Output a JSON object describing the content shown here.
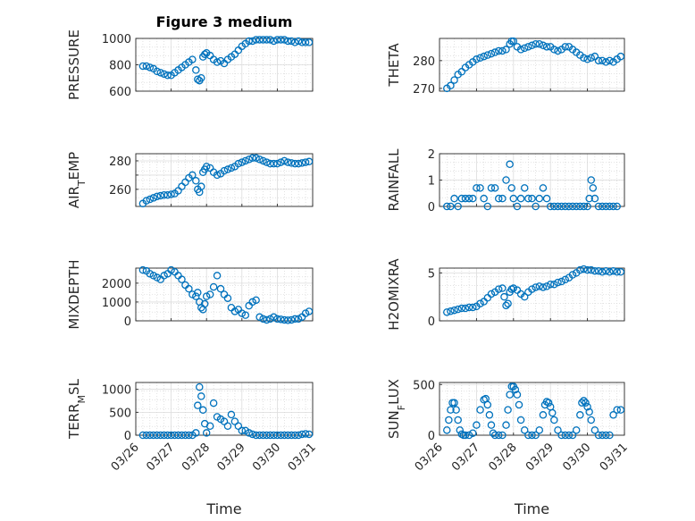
{
  "figure": {
    "title": "Figure 3 medium",
    "marker_color": "#0072BD",
    "x_ticks": [
      "03/26",
      "03/27",
      "03/28",
      "03/29",
      "03/30",
      "03/31"
    ],
    "x_label": "Time"
  },
  "chart_data": [
    {
      "type": "scatter",
      "ylabel": "PRESSURE",
      "ylabel_sub": "",
      "xlim": [
        0,
        5
      ],
      "ylim": [
        600,
        1000
      ],
      "yticks": [
        600,
        800,
        1000
      ],
      "ytick_labels": [
        "600",
        "800",
        "1000"
      ],
      "x": [
        0.2,
        0.3,
        0.4,
        0.5,
        0.6,
        0.7,
        0.8,
        0.9,
        1.0,
        1.1,
        1.2,
        1.3,
        1.4,
        1.5,
        1.6,
        1.7,
        1.75,
        1.8,
        1.85,
        1.9,
        1.95,
        2.0,
        2.1,
        2.2,
        2.3,
        2.4,
        2.5,
        2.6,
        2.7,
        2.8,
        2.9,
        3.0,
        3.1,
        3.2,
        3.3,
        3.4,
        3.5,
        3.6,
        3.7,
        3.8,
        3.9,
        4.0,
        4.1,
        4.2,
        4.3,
        4.4,
        4.5,
        4.6,
        4.7,
        4.8,
        4.9
      ],
      "values": [
        790,
        790,
        780,
        770,
        750,
        740,
        730,
        720,
        720,
        740,
        760,
        780,
        800,
        820,
        840,
        760,
        690,
        680,
        700,
        860,
        880,
        890,
        870,
        840,
        820,
        830,
        810,
        840,
        860,
        880,
        910,
        940,
        960,
        980,
        980,
        990,
        990,
        990,
        990,
        990,
        980,
        990,
        990,
        990,
        980,
        980,
        970,
        980,
        970,
        970,
        970
      ]
    },
    {
      "type": "scatter",
      "ylabel": "THETA",
      "ylabel_sub": "",
      "xlim": [
        0,
        5
      ],
      "ylim": [
        269,
        288
      ],
      "yticks": [
        270,
        280
      ],
      "ytick_labels": [
        "270",
        "280"
      ],
      "x": [
        0.2,
        0.3,
        0.4,
        0.5,
        0.6,
        0.7,
        0.8,
        0.9,
        1.0,
        1.1,
        1.2,
        1.3,
        1.4,
        1.5,
        1.6,
        1.7,
        1.8,
        1.9,
        1.95,
        2.0,
        2.1,
        2.2,
        2.3,
        2.4,
        2.5,
        2.6,
        2.7,
        2.8,
        2.9,
        3.0,
        3.1,
        3.2,
        3.3,
        3.4,
        3.5,
        3.6,
        3.7,
        3.8,
        3.9,
        4.0,
        4.1,
        4.2,
        4.3,
        4.4,
        4.5,
        4.6,
        4.7,
        4.8,
        4.9
      ],
      "values": [
        270,
        271,
        273,
        275,
        276,
        277.5,
        278.5,
        279.5,
        280.5,
        281,
        281.5,
        282,
        282.5,
        283,
        283.5,
        283.5,
        284,
        286,
        287,
        287,
        285,
        284,
        284.5,
        285,
        285.5,
        286,
        286,
        285.5,
        285,
        285,
        284,
        283.5,
        284,
        285,
        285,
        284,
        283,
        282,
        281,
        280.5,
        281,
        281.5,
        280,
        280,
        279.5,
        280,
        279.5,
        280.5,
        281.5
      ]
    },
    {
      "type": "scatter",
      "ylabel": "AIR",
      "ylabel_sub": "T",
      "ylabel_rest": "EMP",
      "xlim": [
        0,
        5
      ],
      "ylim": [
        248,
        285
      ],
      "yticks": [
        260,
        270,
        280
      ],
      "ytick_labels": [
        "260",
        "",
        "280"
      ],
      "x": [
        0.2,
        0.3,
        0.4,
        0.5,
        0.6,
        0.7,
        0.8,
        0.9,
        1.0,
        1.1,
        1.2,
        1.3,
        1.4,
        1.5,
        1.6,
        1.7,
        1.75,
        1.8,
        1.85,
        1.9,
        1.95,
        2.0,
        2.1,
        2.2,
        2.3,
        2.4,
        2.5,
        2.6,
        2.7,
        2.8,
        2.9,
        3.0,
        3.1,
        3.2,
        3.3,
        3.4,
        3.5,
        3.6,
        3.7,
        3.8,
        3.9,
        4.0,
        4.1,
        4.2,
        4.3,
        4.4,
        4.5,
        4.6,
        4.7,
        4.8,
        4.9
      ],
      "values": [
        250,
        252,
        253,
        254,
        255,
        255.5,
        256,
        256,
        256.5,
        257,
        259,
        262,
        265,
        268,
        270,
        266,
        260,
        258,
        262,
        272,
        274,
        276,
        275,
        272,
        270,
        271,
        273,
        274,
        275,
        276,
        278,
        279,
        280,
        281,
        282,
        282,
        281,
        280,
        279,
        278,
        278,
        278,
        279,
        280,
        279,
        278.5,
        278,
        278,
        278.5,
        279,
        279.5
      ]
    },
    {
      "type": "scatter",
      "ylabel": "RAINFALL",
      "ylabel_sub": "",
      "xlim": [
        0,
        5
      ],
      "ylim": [
        0,
        2
      ],
      "yticks": [
        0,
        1,
        2
      ],
      "ytick_labels": [
        "0",
        "1",
        "2"
      ],
      "x": [
        0.2,
        0.3,
        0.4,
        0.5,
        0.6,
        0.7,
        0.8,
        0.9,
        1.0,
        1.1,
        1.2,
        1.3,
        1.4,
        1.5,
        1.6,
        1.7,
        1.8,
        1.9,
        1.95,
        2.0,
        2.1,
        2.2,
        2.3,
        2.4,
        2.5,
        2.6,
        2.7,
        2.8,
        2.9,
        3.0,
        3.1,
        3.2,
        3.3,
        3.4,
        3.5,
        3.6,
        3.7,
        3.8,
        3.9,
        4.0,
        4.05,
        4.1,
        4.15,
        4.2,
        4.3,
        4.4,
        4.5,
        4.6,
        4.7,
        4.8
      ],
      "values": [
        0,
        0,
        0.3,
        0,
        0.3,
        0.3,
        0.3,
        0.3,
        0.7,
        0.7,
        0.3,
        0,
        0.7,
        0.7,
        0.3,
        0.3,
        1.0,
        1.6,
        0.7,
        0.3,
        0,
        0.3,
        0.7,
        0.3,
        0.3,
        0,
        0.3,
        0.7,
        0.3,
        0,
        0,
        0,
        0,
        0,
        0,
        0,
        0,
        0,
        0,
        0,
        0.3,
        1.0,
        0.7,
        0.3,
        0,
        0,
        0,
        0,
        0,
        0
      ]
    },
    {
      "type": "scatter",
      "ylabel": "MIXDEPTH",
      "ylabel_sub": "",
      "xlim": [
        0,
        5
      ],
      "ylim": [
        0,
        2800
      ],
      "yticks": [
        0,
        1000,
        2000
      ],
      "ytick_labels": [
        "0",
        "1000",
        "2000"
      ],
      "x": [
        0.2,
        0.3,
        0.4,
        0.5,
        0.6,
        0.7,
        0.8,
        0.9,
        1.0,
        1.1,
        1.2,
        1.3,
        1.4,
        1.5,
        1.6,
        1.7,
        1.75,
        1.8,
        1.85,
        1.9,
        1.95,
        2.0,
        2.1,
        2.2,
        2.3,
        2.4,
        2.5,
        2.6,
        2.7,
        2.8,
        2.9,
        3.0,
        3.1,
        3.2,
        3.3,
        3.4,
        3.5,
        3.6,
        3.7,
        3.8,
        3.9,
        4.0,
        4.1,
        4.2,
        4.3,
        4.4,
        4.5,
        4.6,
        4.7,
        4.8,
        4.9
      ],
      "values": [
        2700,
        2650,
        2500,
        2400,
        2300,
        2200,
        2400,
        2500,
        2700,
        2600,
        2400,
        2200,
        1900,
        1700,
        1400,
        1300,
        1500,
        1000,
        700,
        600,
        900,
        1300,
        1400,
        1800,
        2400,
        1700,
        1400,
        1200,
        700,
        500,
        600,
        400,
        300,
        800,
        1000,
        1100,
        200,
        100,
        50,
        100,
        200,
        100,
        80,
        50,
        30,
        50,
        100,
        100,
        200,
        400,
        500
      ]
    },
    {
      "type": "scatter",
      "ylabel": "H2OMIXRA",
      "ylabel_sub": "",
      "xlim": [
        0,
        5
      ],
      "ylim": [
        0,
        5.5
      ],
      "yticks": [
        0,
        5
      ],
      "ytick_labels": [
        "0",
        "5"
      ],
      "x": [
        0.2,
        0.3,
        0.4,
        0.5,
        0.6,
        0.7,
        0.8,
        0.9,
        1.0,
        1.1,
        1.2,
        1.3,
        1.4,
        1.5,
        1.6,
        1.7,
        1.75,
        1.8,
        1.85,
        1.9,
        1.95,
        2.0,
        2.1,
        2.2,
        2.3,
        2.4,
        2.5,
        2.6,
        2.7,
        2.8,
        2.9,
        3.0,
        3.1,
        3.2,
        3.3,
        3.4,
        3.5,
        3.6,
        3.7,
        3.8,
        3.9,
        4.0,
        4.1,
        4.2,
        4.3,
        4.4,
        4.5,
        4.6,
        4.7,
        4.8,
        4.9
      ],
      "values": [
        0.9,
        1.0,
        1.1,
        1.2,
        1.3,
        1.3,
        1.4,
        1.4,
        1.5,
        1.8,
        2.0,
        2.4,
        2.8,
        3.0,
        3.3,
        3.4,
        2.5,
        1.6,
        1.8,
        3.0,
        3.3,
        3.4,
        3.2,
        2.8,
        2.5,
        3.0,
        3.3,
        3.5,
        3.6,
        3.5,
        3.6,
        3.8,
        3.8,
        4.0,
        4.1,
        4.3,
        4.5,
        4.8,
        5.0,
        5.3,
        5.4,
        5.3,
        5.3,
        5.2,
        5.2,
        5.1,
        5.2,
        5.1,
        5.2,
        5.1,
        5.1
      ]
    },
    {
      "type": "scatter",
      "ylabel": "TERR",
      "ylabel_sub": "M",
      "ylabel_rest": "SL",
      "xlim": [
        0,
        5
      ],
      "ylim": [
        0,
        1150
      ],
      "yticks": [
        0,
        500,
        1000
      ],
      "ytick_labels": [
        "0",
        "500",
        "1000"
      ],
      "x": [
        0.2,
        0.3,
        0.4,
        0.5,
        0.6,
        0.7,
        0.8,
        0.9,
        1.0,
        1.1,
        1.2,
        1.3,
        1.4,
        1.5,
        1.6,
        1.7,
        1.75,
        1.8,
        1.85,
        1.9,
        1.95,
        2.0,
        2.1,
        2.2,
        2.3,
        2.4,
        2.5,
        2.6,
        2.7,
        2.8,
        2.9,
        3.0,
        3.1,
        3.2,
        3.3,
        3.4,
        3.5,
        3.6,
        3.7,
        3.8,
        3.9,
        4.0,
        4.1,
        4.2,
        4.3,
        4.4,
        4.5,
        4.6,
        4.7,
        4.8,
        4.9
      ],
      "values": [
        0,
        0,
        0,
        0,
        0,
        0,
        0,
        0,
        0,
        0,
        0,
        0,
        0,
        0,
        0,
        50,
        650,
        1050,
        850,
        550,
        250,
        50,
        200,
        700,
        400,
        350,
        300,
        200,
        450,
        300,
        200,
        100,
        100,
        50,
        20,
        0,
        0,
        0,
        0,
        0,
        0,
        0,
        0,
        0,
        0,
        0,
        0,
        0,
        20,
        30,
        20
      ]
    },
    {
      "type": "scatter",
      "ylabel": "SUN",
      "ylabel_sub": "F",
      "ylabel_rest": "LUX",
      "xlim": [
        0,
        5
      ],
      "ylim": [
        0,
        520
      ],
      "yticks": [
        0,
        500
      ],
      "ytick_labels": [
        "0",
        "500"
      ],
      "x": [
        0.2,
        0.25,
        0.3,
        0.35,
        0.4,
        0.45,
        0.5,
        0.55,
        0.6,
        0.65,
        0.7,
        0.8,
        0.9,
        1.0,
        1.1,
        1.2,
        1.25,
        1.3,
        1.35,
        1.4,
        1.45,
        1.5,
        1.6,
        1.7,
        1.8,
        1.85,
        1.9,
        1.95,
        2.0,
        2.05,
        2.1,
        2.15,
        2.2,
        2.3,
        2.4,
        2.5,
        2.6,
        2.7,
        2.8,
        2.85,
        2.9,
        2.95,
        3.0,
        3.05,
        3.1,
        3.2,
        3.3,
        3.4,
        3.5,
        3.6,
        3.7,
        3.8,
        3.85,
        3.9,
        3.95,
        4.0,
        4.05,
        4.1,
        4.2,
        4.3,
        4.4,
        4.5,
        4.6,
        4.7,
        4.8,
        4.9
      ],
      "values": [
        50,
        150,
        250,
        320,
        320,
        250,
        150,
        50,
        10,
        0,
        0,
        0,
        20,
        100,
        250,
        350,
        360,
        300,
        200,
        100,
        20,
        0,
        0,
        0,
        100,
        250,
        400,
        480,
        480,
        450,
        400,
        300,
        150,
        50,
        0,
        0,
        0,
        50,
        200,
        300,
        330,
        320,
        280,
        220,
        150,
        50,
        0,
        0,
        0,
        0,
        50,
        200,
        320,
        340,
        320,
        280,
        230,
        150,
        50,
        0,
        0,
        0,
        0,
        200,
        250,
        250
      ]
    }
  ]
}
